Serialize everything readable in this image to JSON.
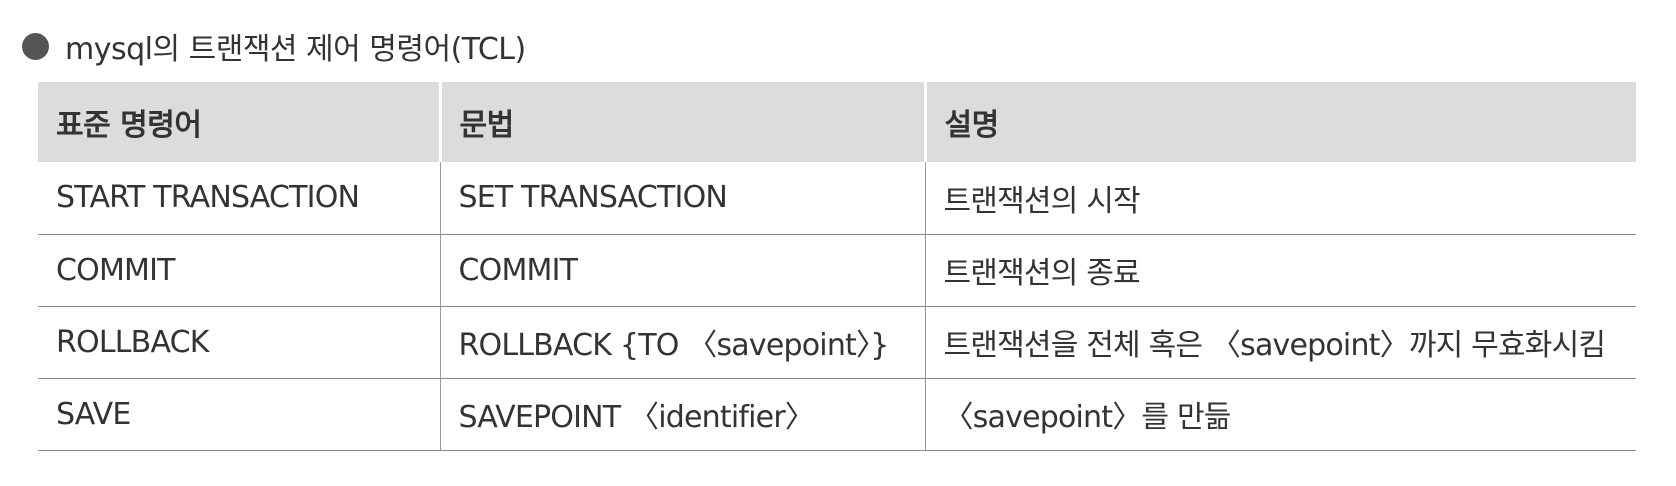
{
  "heading": "mysql의 트랜잭션 제어 명령어(TCL)",
  "table": {
    "headers": [
      "표준 명령어",
      "문법",
      "설명"
    ],
    "rows": [
      [
        "START TRANSACTION",
        "SET TRANSACTION",
        "트랜잭션의 시작"
      ],
      [
        "COMMIT",
        "COMMIT",
        "트랜잭션의 종료"
      ],
      [
        "ROLLBACK",
        "ROLLBACK {TO 〈savepoint〉}",
        "트랜잭션을 전체 혹은 〈savepoint〉까지 무효화시킴"
      ],
      [
        "SAVE",
        "SAVEPOINT 〈identifier〉",
        "〈savepoint〉를 만듦"
      ]
    ]
  },
  "colors": {
    "header_bg": "#dcdcdc",
    "text": "#333333",
    "bullet": "#555555",
    "rule": "#8a8a8a"
  }
}
